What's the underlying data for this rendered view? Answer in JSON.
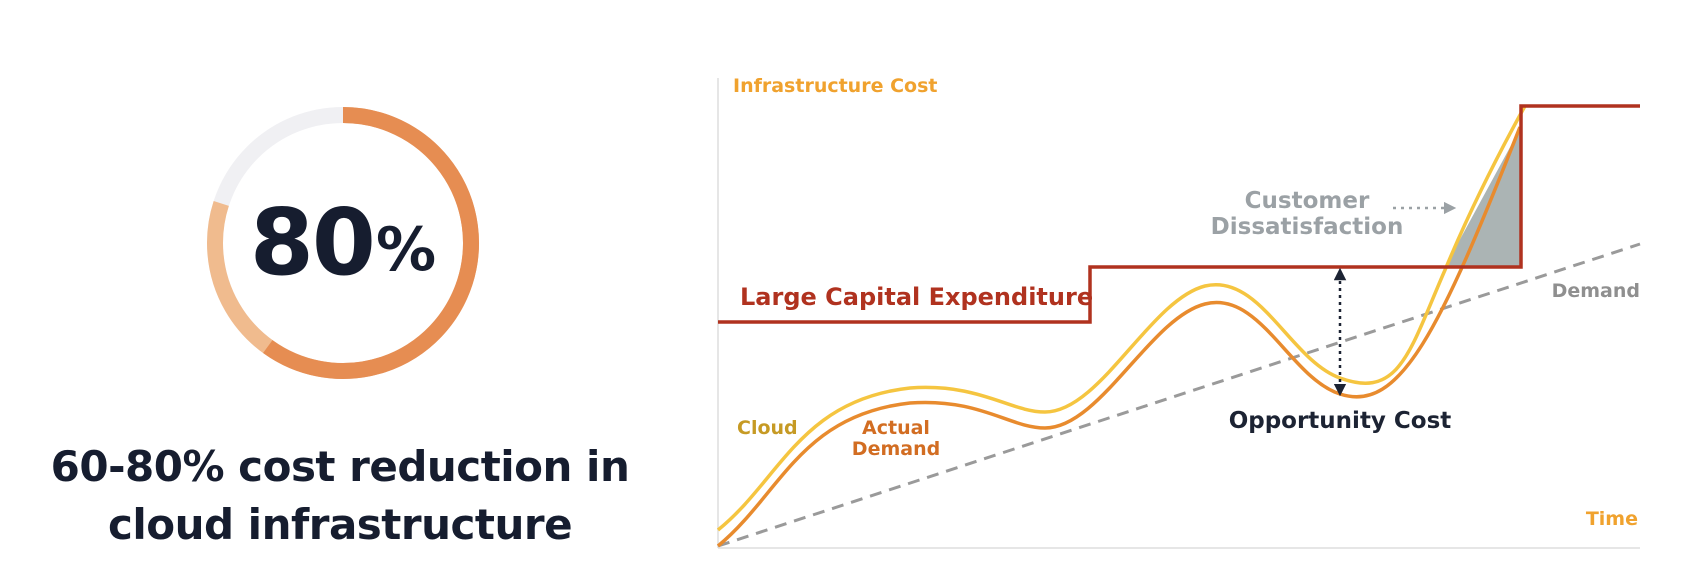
{
  "stat": {
    "value": "80",
    "unit": "%",
    "ring": {
      "filled_fraction": 0.8,
      "highlight_fraction": 0.6,
      "color_main": "#e68d52",
      "color_light": "#f0bb8e",
      "color_track": "#f0f0f3"
    },
    "caption_line1": "60-80% cost reduction in",
    "caption_line2": "cloud infrastructure"
  },
  "diagram": {
    "y_axis_label": "Infrastructure Cost",
    "x_axis_label": "Time",
    "labels": {
      "capex": "Large Capital Expenditure",
      "cloud": "Cloud",
      "actual_demand_line1": "Actual",
      "actual_demand_line2": "Demand",
      "demand": "Demand",
      "opportunity_cost": "Opportunity Cost",
      "customer_dissatisfaction_line1": "Customer",
      "customer_dissatisfaction_line2": "Dissatisfaction"
    },
    "colors": {
      "capex": "#b0321f",
      "cloud": "#f5c540",
      "cloud_label": "#c69a24",
      "actual_demand": "#e88b2e",
      "actual_demand_label": "#d26d22",
      "demand": "#9a9a9a",
      "demand_label": "#8f8f8f",
      "axis_label": "#f0a22e",
      "opportunity": "#1c2333",
      "dissatisfaction": "#9ba1a5",
      "dissatisfaction_fill": "#abb4b4"
    }
  }
}
